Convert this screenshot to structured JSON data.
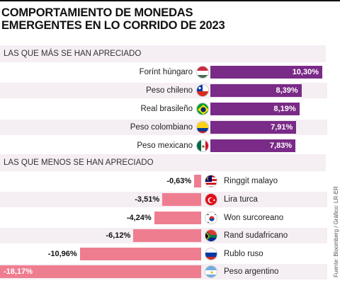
{
  "title_line1": "COMPORTAMIENTO DE MONEDAS",
  "title_line2": "EMERGENTES EN LO CORRIDO DE 2023",
  "section_top": "LAS QUE MÁS SE HAN APRECIADO",
  "section_bottom": "LAS QUE MENOS SE HAN APRECIADO",
  "source": "Fuente: Bloomberg / Gráfico: LR-ER",
  "colors": {
    "positive": "#7a2a87",
    "negative": "#ee7d90",
    "band": "#f5eef3"
  },
  "chart_data": [
    {
      "type": "bar",
      "title": "LAS QUE MÁS SE HAN APRECIADO",
      "categories": [
        "Forínt húngaro",
        "Peso chileno",
        "Real brasileño",
        "Peso colombiano",
        "Peso mexicano"
      ],
      "values": [
        10.3,
        8.39,
        8.19,
        7.91,
        7.83
      ],
      "labels": [
        "10,30%",
        "8,39%",
        "8,19%",
        "7,91%",
        "7,83%"
      ],
      "flags": [
        "hungary-flag-icon",
        "chile-flag-icon",
        "brazil-flag-icon",
        "colombia-flag-icon",
        "mexico-flag-icon"
      ],
      "unit": "%"
    },
    {
      "type": "bar",
      "title": "LAS QUE MENOS SE HAN APRECIADO",
      "categories": [
        "Ringgit malayo",
        "Lira turca",
        "Won surcoreano",
        "Rand sudafricano",
        "Rublo ruso",
        "Peso argentino"
      ],
      "values": [
        -0.63,
        -3.51,
        -4.24,
        -6.12,
        -10.96,
        -18.17
      ],
      "labels": [
        "-0,63%",
        "-3,51%",
        "-4,24%",
        "-6,12%",
        "-10,96%",
        "-18,17%"
      ],
      "flags": [
        "malaysia-flag-icon",
        "turkey-flag-icon",
        "south-korea-flag-icon",
        "south-africa-flag-icon",
        "russia-flag-icon",
        "argentina-flag-icon"
      ],
      "unit": "%"
    }
  ]
}
